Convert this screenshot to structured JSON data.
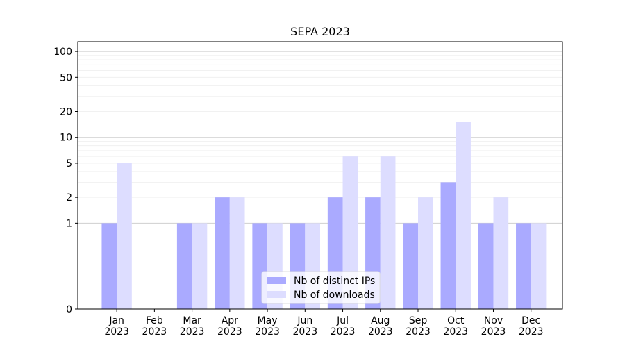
{
  "chart_data": {
    "type": "bar",
    "title": "SEPA 2023",
    "xlabel": "",
    "ylabel": "",
    "yscale": "symlog",
    "ylim": [
      0,
      130
    ],
    "yticks": [
      0,
      1,
      2,
      5,
      10,
      20,
      50,
      100
    ],
    "ytick_labels": [
      "0",
      "1",
      "2",
      "5",
      "10",
      "20",
      "50",
      "100"
    ],
    "categories": [
      "Jan\n2023",
      "Feb\n2023",
      "Mar\n2023",
      "Apr\n2023",
      "May\n2023",
      "Jun\n2023",
      "Jul\n2023",
      "Aug\n2023",
      "Sep\n2023",
      "Oct\n2023",
      "Nov\n2023",
      "Dec\n2023"
    ],
    "series": [
      {
        "name": "Nb of distinct IPs",
        "color": "#aaaaff",
        "values": [
          1,
          0,
          1,
          2,
          1,
          1,
          2,
          2,
          1,
          3,
          1,
          1
        ]
      },
      {
        "name": "Nb of downloads",
        "color": "#ddddff",
        "values": [
          5,
          0,
          1,
          2,
          1,
          1,
          6,
          6,
          2,
          15,
          2,
          1
        ]
      }
    ],
    "grid": true,
    "legend_position": "lower center"
  }
}
